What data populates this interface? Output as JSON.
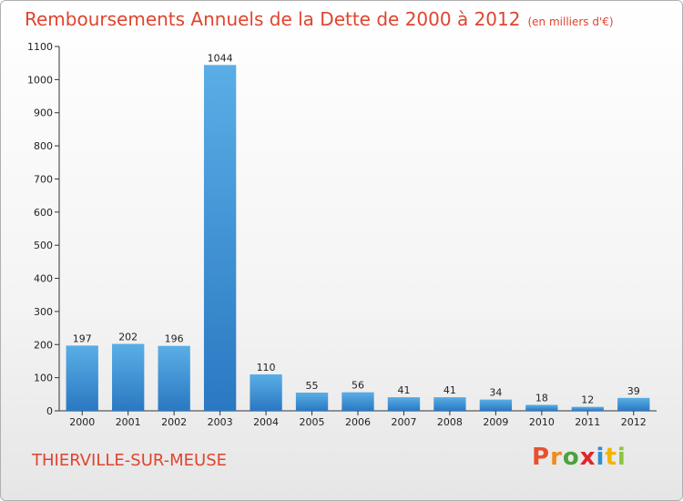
{
  "header": {
    "title": "Remboursements Annuels de la Dette de 2000 à 2012",
    "subtitle": "(en milliers d'€)"
  },
  "footer": {
    "city": "THIERVILLE-SUR-MEUSE",
    "logo_letters": [
      "P",
      "r",
      "o",
      "x",
      "i",
      "t",
      "i"
    ],
    "logo_colors": [
      "#e94f2e",
      "#f08c1b",
      "#4aa339",
      "#e3242b",
      "#2f8fd0",
      "#f2b400",
      "#8bc53f"
    ]
  },
  "chart_data": {
    "type": "bar",
    "categories": [
      "2000",
      "2001",
      "2002",
      "2003",
      "2004",
      "2005",
      "2006",
      "2007",
      "2008",
      "2009",
      "2010",
      "2011",
      "2012"
    ],
    "values": [
      197,
      202,
      196,
      1044,
      110,
      55,
      56,
      41,
      41,
      34,
      18,
      12,
      39
    ],
    "data_labels": [
      "197",
      "202",
      "196",
      "1044",
      "110",
      "55",
      "56",
      "41",
      "41",
      "34",
      "18",
      "12",
      "39"
    ],
    "yticks": [
      "0",
      "100",
      "200",
      "300",
      "400",
      "500",
      "600",
      "700",
      "800",
      "900",
      "1000",
      "1100"
    ],
    "ylim": [
      0,
      1100
    ],
    "grid": false,
    "legend": "none",
    "bar_color": "#3b92d6"
  }
}
